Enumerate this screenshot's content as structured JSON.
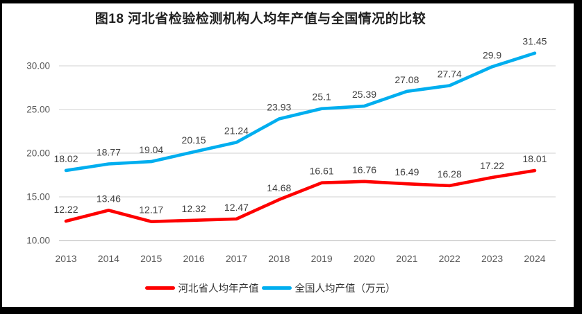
{
  "title": "图18 河北省检验检测机构人均年产值与全国情况的比较",
  "chart_data": {
    "type": "line",
    "title": "图18 河北省检验检测机构人均年产值与全国情况的比较",
    "categories": [
      "2013",
      "2014",
      "2015",
      "2016",
      "2017",
      "2018",
      "2019",
      "2020",
      "2021",
      "2022",
      "2023",
      "2024"
    ],
    "series": [
      {
        "name": "河北省人均年产值",
        "color": "#fe0000",
        "values": [
          12.22,
          13.46,
          12.17,
          12.32,
          12.47,
          14.68,
          16.61,
          16.76,
          16.49,
          16.28,
          17.22,
          18.01
        ]
      },
      {
        "name": "全国人均产值（万元）",
        "color": "#00aeef",
        "values": [
          18.02,
          18.77,
          19.04,
          20.15,
          21.24,
          23.93,
          25.1,
          25.39,
          27.08,
          27.74,
          29.9,
          31.45
        ]
      }
    ],
    "xlabel": "",
    "ylabel": "",
    "ylim": [
      10,
      30
    ],
    "ytick_step": 5,
    "ytick_labels": [
      "10.00",
      "15.00",
      "20.00",
      "25.00",
      "30.00"
    ],
    "grid": true,
    "data_labels": true,
    "legend_position": "bottom"
  },
  "style_colors": {
    "grid": "#d9d9d9",
    "axis_line": "#bfbfbf",
    "tick_text": "#595959",
    "data_label_text": "#3f3f3f",
    "frame": "#000000"
  }
}
